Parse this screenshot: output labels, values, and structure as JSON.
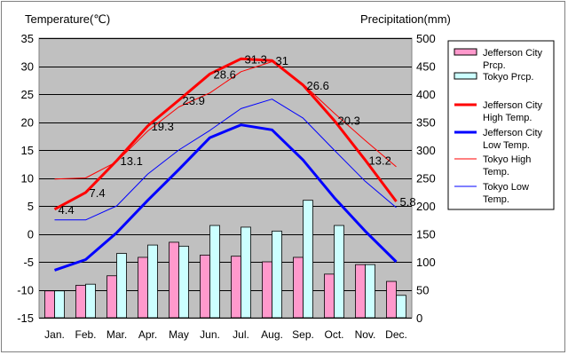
{
  "chart_data": {
    "type": "bar",
    "title_left": "Temperature(℃)",
    "title_right": "Precipitation(mm)",
    "categories": [
      "Jan.",
      "Feb.",
      "Mar.",
      "Apr.",
      "May",
      "Jun.",
      "Jul.",
      "Aug.",
      "Sep.",
      "Oct.",
      "Nov.",
      "Dec."
    ],
    "y_left": {
      "ylim": [
        -15,
        35
      ],
      "ticks": [
        35,
        30,
        25,
        20,
        15,
        10,
        5,
        0,
        -5,
        -10,
        -15
      ]
    },
    "y_right": {
      "ylim": [
        0,
        500
      ],
      "ticks": [
        500,
        450,
        400,
        350,
        300,
        250,
        200,
        150,
        100,
        50,
        0
      ]
    },
    "grid": true,
    "legend_position": "right",
    "series": [
      {
        "name": "Jefferson City Prcp.",
        "kind": "bar",
        "axis": "right",
        "color": "#ff99cc",
        "values": [
          48,
          58,
          75,
          108,
          135,
          112,
          110,
          100,
          108,
          78,
          95,
          65
        ]
      },
      {
        "name": "Tokyo Prcp.",
        "kind": "bar",
        "axis": "right",
        "color": "#ccffff",
        "values": [
          48,
          60,
          115,
          130,
          128,
          165,
          162,
          155,
          210,
          165,
          95,
          40
        ]
      },
      {
        "name": "Jefferson City High Temp.",
        "kind": "line",
        "axis": "left",
        "color": "#ff0000",
        "width": 3,
        "values": [
          4.4,
          7.4,
          13.1,
          19.3,
          23.9,
          28.6,
          31.3,
          31,
          26.6,
          20.3,
          13.2,
          5.8
        ]
      },
      {
        "name": "Jefferson City Low Temp.",
        "kind": "line",
        "axis": "left",
        "color": "#0000ff",
        "width": 3,
        "values": [
          -6.5,
          -4.6,
          0.2,
          6,
          11.5,
          17.2,
          19.5,
          18.6,
          13.2,
          6.5,
          0.5,
          -5
        ]
      },
      {
        "name": "Tokyo High Temp.",
        "kind": "line",
        "axis": "left",
        "color": "#ff0000",
        "width": 1,
        "values": [
          9.8,
          10,
          12.9,
          18.4,
          22.7,
          25.2,
          29,
          30.8,
          26.8,
          21.6,
          16.7,
          12
        ]
      },
      {
        "name": "Tokyo Low Temp.",
        "kind": "line",
        "axis": "left",
        "color": "#0000ff",
        "width": 1,
        "values": [
          2.5,
          2.5,
          5,
          10.7,
          15,
          18.5,
          22.4,
          24.1,
          20.7,
          15,
          9.4,
          4.7
        ]
      }
    ],
    "data_labels": [
      "4.4",
      "7.4",
      "13.1",
      "19.3",
      "23.9",
      "28.6",
      "31.3",
      "31",
      "26.6",
      "20.3",
      "13.2",
      "5.8"
    ],
    "legend": [
      {
        "label_lines": [
          "Jefferson City",
          "Prcp."
        ],
        "kind": "bar",
        "color": "#ff99cc"
      },
      {
        "label_lines": [
          "Tokyo Prcp."
        ],
        "kind": "bar",
        "color": "#ccffff"
      },
      {
        "label_lines": [
          "Jefferson City",
          "High Temp."
        ],
        "kind": "line",
        "color": "#ff0000",
        "width": 3
      },
      {
        "label_lines": [
          "Jefferson City",
          "Low Temp."
        ],
        "kind": "line",
        "color": "#0000ff",
        "width": 3
      },
      {
        "label_lines": [
          "Tokyo High",
          "Temp."
        ],
        "kind": "line",
        "color": "#ff0000",
        "width": 1
      },
      {
        "label_lines": [
          "Tokyo Low",
          "Temp."
        ],
        "kind": "line",
        "color": "#0000ff",
        "width": 1
      }
    ]
  }
}
